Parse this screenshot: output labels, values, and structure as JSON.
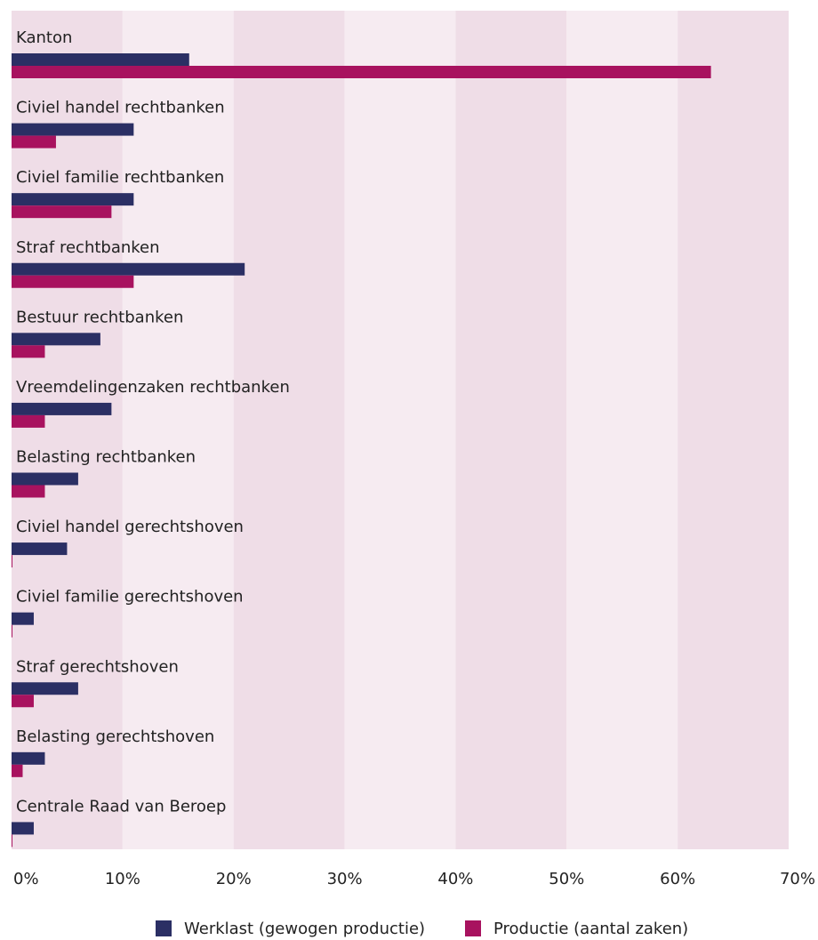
{
  "chart_data": {
    "type": "hbar",
    "categories": [
      "Kanton",
      "Civiel handel rechtbanken",
      "Civiel familie rechtbanken",
      "Straf rechtbanken",
      "Bestuur rechtbanken",
      "Vreemdelingenzaken rechtbanken",
      "Belasting rechtbanken",
      "Civiel handel gerechtshoven",
      "Civiel familie gerechtshoven",
      "Straf gerechtshoven",
      "Belasting gerechtshoven",
      "Centrale Raad van Beroep"
    ],
    "series": [
      {
        "name": "Werklast (gewogen productie)",
        "color": "#2b2f64",
        "values": [
          16,
          11,
          11,
          21,
          8,
          9,
          6,
          5,
          2,
          6,
          3,
          2
        ]
      },
      {
        "name": "Productie (aantal zaken)",
        "color": "#a8125f",
        "values": [
          63,
          4,
          9,
          11,
          3,
          3,
          3,
          0,
          0,
          2,
          1,
          0
        ]
      }
    ],
    "xlim": [
      0,
      70
    ],
    "xticks": [
      {
        "value": 0,
        "label": "0%"
      },
      {
        "value": 10,
        "label": "10%"
      },
      {
        "value": 20,
        "label": "20%"
      },
      {
        "value": 30,
        "label": "30%"
      },
      {
        "value": 40,
        "label": "40%"
      },
      {
        "value": 50,
        "label": "50%"
      },
      {
        "value": 60,
        "label": "60%"
      },
      {
        "value": 70,
        "label": "70%"
      }
    ],
    "grid": true,
    "legend": "bottom"
  }
}
